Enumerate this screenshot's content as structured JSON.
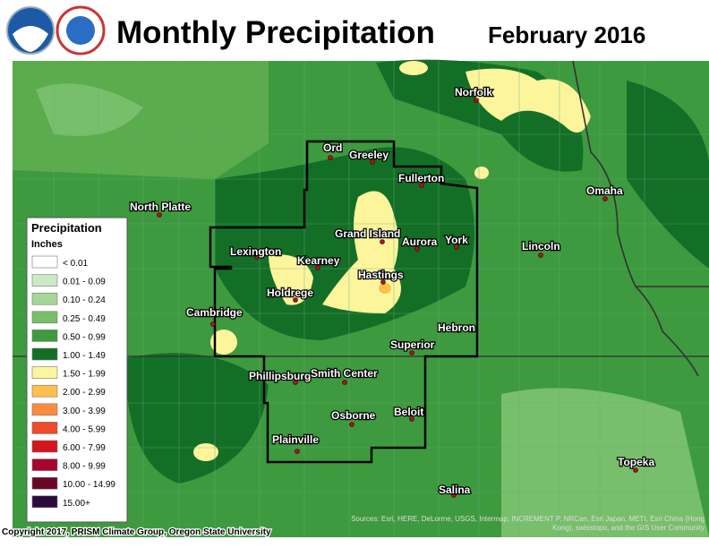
{
  "header": {
    "title": "Monthly Precipitation",
    "date": "February 2016"
  },
  "legend": {
    "title": "Precipitation",
    "units": "Inches",
    "items": [
      {
        "label": "< 0.01",
        "color": "#ffffff"
      },
      {
        "label": "0.01 - 0.09",
        "color": "#cdeac6"
      },
      {
        "label": "0.10 - 0.24",
        "color": "#a6d69a"
      },
      {
        "label": "0.25 - 0.49",
        "color": "#78bf6b"
      },
      {
        "label": "0.50 - 0.99",
        "color": "#3e9a3e"
      },
      {
        "label": "1.00 - 1.49",
        "color": "#146f26"
      },
      {
        "label": "1.50 - 1.99",
        "color": "#fdf59c"
      },
      {
        "label": "2.00 - 2.99",
        "color": "#fdc04c"
      },
      {
        "label": "3.00 - 3.99",
        "color": "#fb8b3d"
      },
      {
        "label": "4.00 - 5.99",
        "color": "#ef4a29"
      },
      {
        "label": "6.00 - 7.99",
        "color": "#d51420"
      },
      {
        "label": "8.00 - 9.99",
        "color": "#a8062c"
      },
      {
        "label": "10.00 - 14.99",
        "color": "#690725"
      },
      {
        "label": "15.00+",
        "color": "#2c0a3e"
      }
    ]
  },
  "cities": [
    "North Platte",
    "Lexington",
    "Kearney",
    "Holdrege",
    "Cambridge",
    "Grand Island",
    "Aurora",
    "York",
    "Hastings",
    "Hebron",
    "Superior",
    "Ord",
    "Greeley",
    "Fullerton",
    "Norfolk",
    "Omaha",
    "Lincoln",
    "Phillipsburg",
    "Smith Center",
    "Osborne",
    "Beloit",
    "Plainville",
    "Salina",
    "Topeka"
  ],
  "footer": {
    "copyright": "Copyright 2017, PRISM Climate Group, Oregon State University",
    "source": "Sources: Esri, HERE, DeLorme, USGS, Intermap, INCREMENT P, NRCan, Esri Japan, METI, Esri China (Hong Kong), swisstopo, and the GIS User Community"
  }
}
